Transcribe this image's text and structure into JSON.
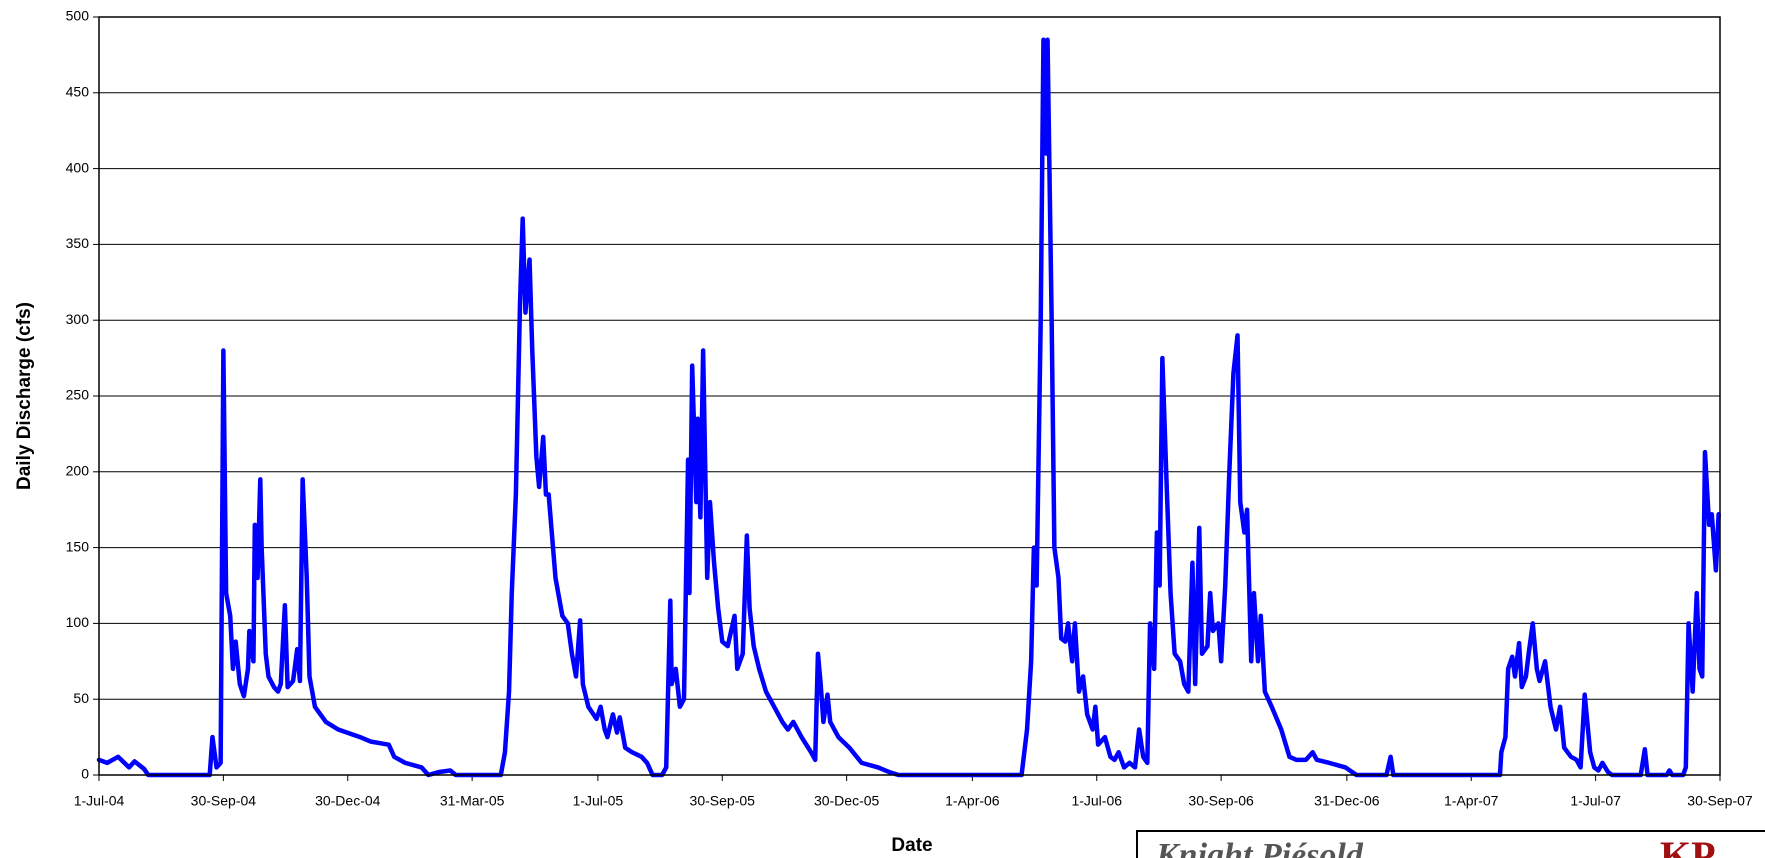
{
  "chart_data": {
    "type": "line",
    "xlabel": "Date",
    "ylabel": "Daily Discharge (cfs)",
    "xlim": [
      "2004-07-01",
      "2007-09-30"
    ],
    "ylim": [
      0,
      500
    ],
    "yticks": [
      0,
      50,
      100,
      150,
      200,
      250,
      300,
      350,
      400,
      450,
      500
    ],
    "xticks": [
      {
        "value": "2004-07-01",
        "label": "1-Jul-04"
      },
      {
        "value": "2004-09-30",
        "label": "30-Sep-04"
      },
      {
        "value": "2004-12-30",
        "label": "30-Dec-04"
      },
      {
        "value": "2005-03-31",
        "label": "31-Mar-05"
      },
      {
        "value": "2005-07-01",
        "label": "1-Jul-05"
      },
      {
        "value": "2005-09-30",
        "label": "30-Sep-05"
      },
      {
        "value": "2005-12-30",
        "label": "30-Dec-05"
      },
      {
        "value": "2006-04-01",
        "label": "1-Apr-06"
      },
      {
        "value": "2006-07-01",
        "label": "1-Jul-06"
      },
      {
        "value": "2006-09-30",
        "label": "30-Sep-06"
      },
      {
        "value": "2006-12-31",
        "label": "31-Dec-06"
      },
      {
        "value": "2007-04-01",
        "label": "1-Apr-07"
      },
      {
        "value": "2007-07-01",
        "label": "1-Jul-07"
      },
      {
        "value": "2007-09-30",
        "label": "30-Sep-07"
      }
    ],
    "grid": true,
    "x": [
      "2004-07-01",
      "2004-07-07",
      "2004-07-15",
      "2004-07-23",
      "2004-07-27",
      "2004-08-03",
      "2004-08-06",
      "2004-09-20",
      "2004-09-22",
      "2004-09-25",
      "2004-09-28",
      "2004-09-30",
      "2004-10-02",
      "2004-10-05",
      "2004-10-07",
      "2004-10-09",
      "2004-10-12",
      "2004-10-15",
      "2004-10-18",
      "2004-10-19",
      "2004-10-22",
      "2004-10-23",
      "2004-10-25",
      "2004-10-27",
      "2004-10-28",
      "2004-10-31",
      "2004-11-02",
      "2004-11-06",
      "2004-11-09",
      "2004-11-11",
      "2004-11-14",
      "2004-11-16",
      "2004-11-20",
      "2004-11-23",
      "2004-11-25",
      "2004-11-27",
      "2004-11-30",
      "2004-12-02",
      "2004-12-06",
      "2004-12-14",
      "2004-12-23",
      "2005-01-08",
      "2005-01-16",
      "2005-01-29",
      "2005-02-02",
      "2005-02-10",
      "2005-02-22",
      "2005-02-27",
      "2005-03-07",
      "2005-03-15",
      "2005-03-19",
      "2005-04-21",
      "2005-04-24",
      "2005-04-27",
      "2005-04-29",
      "2005-05-02",
      "2005-05-05",
      "2005-05-07",
      "2005-05-09",
      "2005-05-12",
      "2005-05-14",
      "2005-05-17",
      "2005-05-19",
      "2005-05-22",
      "2005-05-24",
      "2005-05-26",
      "2005-05-31",
      "2005-06-05",
      "2005-06-09",
      "2005-06-12",
      "2005-06-15",
      "2005-06-18",
      "2005-06-20",
      "2005-06-24",
      "2005-06-30",
      "2005-07-03",
      "2005-07-06",
      "2005-07-08",
      "2005-07-12",
      "2005-07-15",
      "2005-07-17",
      "2005-07-21",
      "2005-07-26",
      "2005-08-02",
      "2005-08-06",
      "2005-08-10",
      "2005-08-17",
      "2005-08-20",
      "2005-08-23",
      "2005-08-24",
      "2005-08-27",
      "2005-08-30",
      "2005-09-02",
      "2005-09-05",
      "2005-09-06",
      "2005-09-08",
      "2005-09-11",
      "2005-09-12",
      "2005-09-14",
      "2005-09-16",
      "2005-09-19",
      "2005-09-21",
      "2005-09-24",
      "2005-09-27",
      "2005-09-30",
      "2005-10-04",
      "2005-10-09",
      "2005-10-11",
      "2005-10-15",
      "2005-10-18",
      "2005-10-20",
      "2005-10-23",
      "2005-10-27",
      "2005-11-01",
      "2005-11-07",
      "2005-11-13",
      "2005-11-17",
      "2005-11-21",
      "2005-11-27",
      "2005-12-04",
      "2005-12-07",
      "2005-12-09",
      "2005-12-11",
      "2005-12-13",
      "2005-12-16",
      "2005-12-18",
      "2005-12-24",
      "2006-01-01",
      "2006-01-10",
      "2006-01-22",
      "2006-01-30",
      "2006-02-06",
      "2006-05-07",
      "2006-05-11",
      "2006-05-14",
      "2006-05-16",
      "2006-05-18",
      "2006-05-21",
      "2006-05-23",
      "2006-05-25",
      "2006-05-26",
      "2006-05-29",
      "2006-05-31",
      "2006-06-03",
      "2006-06-05",
      "2006-06-08",
      "2006-06-10",
      "2006-06-13",
      "2006-06-15",
      "2006-06-18",
      "2006-06-21",
      "2006-06-24",
      "2006-06-28",
      "2006-06-30",
      "2006-07-02",
      "2006-07-07",
      "2006-07-11",
      "2006-07-14",
      "2006-07-17",
      "2006-07-21",
      "2006-07-25",
      "2006-07-29",
      "2006-08-01",
      "2006-08-04",
      "2006-08-07",
      "2006-08-09",
      "2006-08-12",
      "2006-08-14",
      "2006-08-16",
      "2006-08-18",
      "2006-08-21",
      "2006-08-24",
      "2006-08-27",
      "2006-08-31",
      "2006-09-03",
      "2006-09-06",
      "2006-09-09",
      "2006-09-11",
      "2006-09-14",
      "2006-09-16",
      "2006-09-20",
      "2006-09-22",
      "2006-09-24",
      "2006-09-28",
      "2006-09-30",
      "2006-10-03",
      "2006-10-06",
      "2006-10-09",
      "2006-10-12",
      "2006-10-14",
      "2006-10-17",
      "2006-10-19",
      "2006-10-22",
      "2006-10-24",
      "2006-10-27",
      "2006-10-29",
      "2006-11-01",
      "2006-11-06",
      "2006-11-13",
      "2006-11-19",
      "2006-11-24",
      "2006-12-01",
      "2006-12-06",
      "2006-12-09",
      "2006-12-18",
      "2006-12-30",
      "2007-01-07",
      "2007-01-29",
      "2007-02-01",
      "2007-02-03",
      "2007-04-22",
      "2007-04-23",
      "2007-04-26",
      "2007-04-28",
      "2007-05-01",
      "2007-05-03",
      "2007-05-06",
      "2007-05-08",
      "2007-05-11",
      "2007-05-13",
      "2007-05-16",
      "2007-05-19",
      "2007-05-21",
      "2007-05-25",
      "2007-05-29",
      "2007-06-02",
      "2007-06-05",
      "2007-06-08",
      "2007-06-13",
      "2007-06-17",
      "2007-06-20",
      "2007-06-23",
      "2007-06-27",
      "2007-06-30",
      "2007-07-03",
      "2007-07-06",
      "2007-07-10",
      "2007-07-13",
      "2007-08-03",
      "2007-08-06",
      "2007-08-08",
      "2007-08-22",
      "2007-08-24",
      "2007-08-26",
      "2007-09-03",
      "2007-09-05",
      "2007-09-07",
      "2007-09-10",
      "2007-09-13",
      "2007-09-15",
      "2007-09-17",
      "2007-09-19",
      "2007-09-22",
      "2007-09-24",
      "2007-09-27",
      "2007-09-29"
    ],
    "series": [
      {
        "color": "#0000ff",
        "values": [
          10,
          8,
          12,
          5,
          9,
          4,
          0,
          0,
          25,
          5,
          8,
          280,
          120,
          105,
          70,
          88,
          60,
          52,
          70,
          95,
          75,
          165,
          130,
          195,
          150,
          80,
          65,
          58,
          55,
          60,
          112,
          58,
          62,
          83,
          62,
          195,
          130,
          65,
          45,
          35,
          30,
          25,
          22,
          20,
          12,
          8,
          5,
          0,
          2,
          3,
          0,
          0,
          15,
          55,
          120,
          185,
          310,
          367,
          305,
          340,
          280,
          210,
          190,
          223,
          185,
          185,
          130,
          105,
          100,
          80,
          65,
          102,
          60,
          45,
          37,
          45,
          30,
          25,
          40,
          28,
          38,
          18,
          15,
          12,
          8,
          0,
          0,
          5,
          115,
          60,
          70,
          45,
          50,
          208,
          120,
          270,
          180,
          235,
          170,
          280,
          130,
          180,
          140,
          110,
          88,
          85,
          105,
          70,
          80,
          158,
          110,
          85,
          70,
          55,
          45,
          35,
          30,
          35,
          25,
          15,
          10,
          80,
          60,
          35,
          53,
          35,
          25,
          18,
          8,
          5,
          2,
          0,
          0,
          30,
          75,
          150,
          125,
          300,
          485,
          410,
          485,
          300,
          150,
          130,
          90,
          88,
          100,
          75,
          100,
          55,
          65,
          40,
          30,
          45,
          20,
          25,
          12,
          10,
          15,
          5,
          8,
          5,
          30,
          12,
          8,
          100,
          70,
          160,
          125,
          275,
          195,
          120,
          80,
          75,
          60,
          55,
          140,
          60,
          163,
          80,
          85,
          120,
          95,
          100,
          75,
          125,
          200,
          265,
          290,
          180,
          160,
          175,
          75,
          120,
          75,
          105,
          55,
          45,
          30,
          12,
          10,
          10,
          15,
          10,
          8,
          5,
          0,
          0,
          12,
          0,
          0,
          15,
          25,
          70,
          78,
          65,
          87,
          58,
          65,
          80,
          100,
          70,
          62,
          75,
          45,
          30,
          45,
          18,
          12,
          10,
          5,
          53,
          15,
          5,
          3,
          8,
          2,
          0,
          0,
          17,
          0,
          0,
          3,
          0,
          0,
          5,
          100,
          55,
          120,
          70,
          65,
          213,
          165,
          172,
          135,
          172
        ]
      }
    ],
    "logo": {
      "name": "Knight Piésold",
      "mark": "KP"
    }
  }
}
